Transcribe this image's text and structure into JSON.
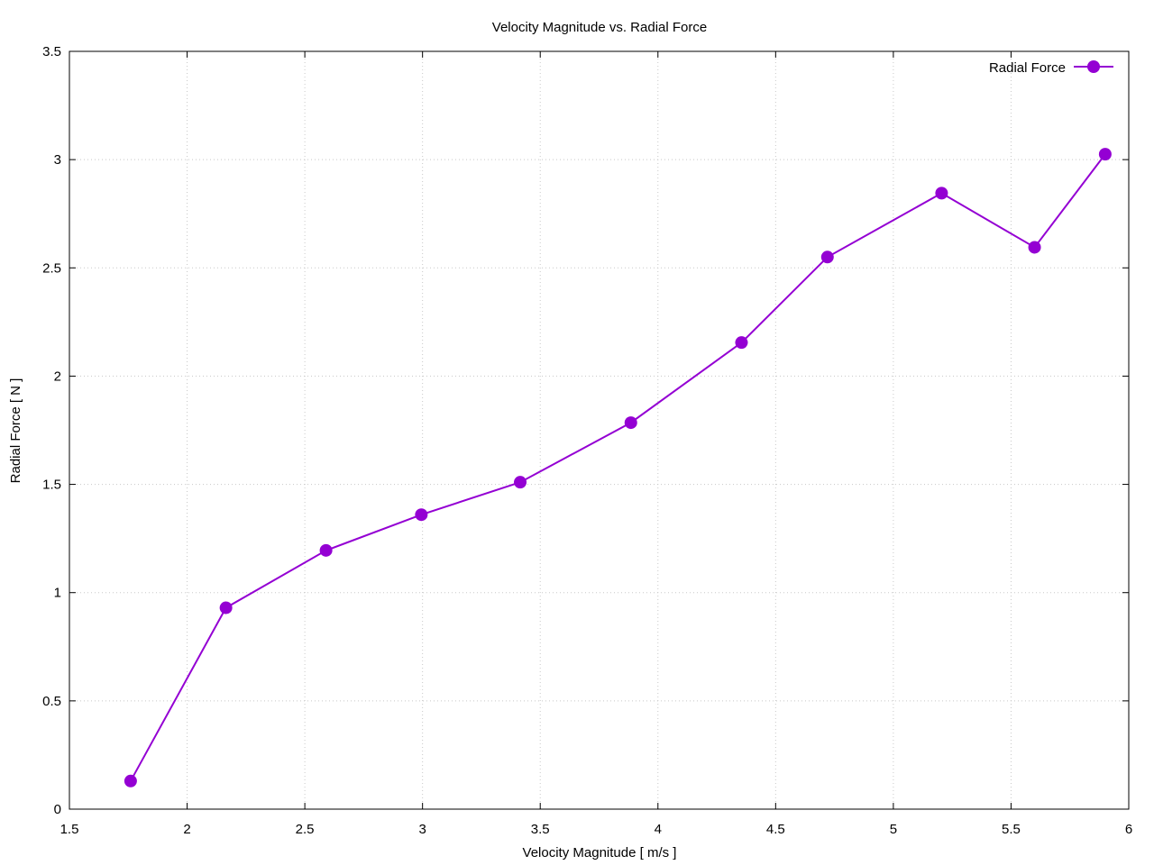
{
  "chart_data": {
    "type": "line",
    "title": "Velocity Magnitude vs. Radial Force",
    "xlabel": "Velocity Magnitude [ m/s ]",
    "ylabel": "Radial Force [ N ]",
    "xlim": [
      1.5,
      6
    ],
    "ylim": [
      0,
      3.5
    ],
    "grid": true,
    "legend_position": "top-right",
    "x_ticks": [
      {
        "value": 1.5,
        "label": "1.5"
      },
      {
        "value": 2,
        "label": "2"
      },
      {
        "value": 2.5,
        "label": "2.5"
      },
      {
        "value": 3,
        "label": "3"
      },
      {
        "value": 3.5,
        "label": "3.5"
      },
      {
        "value": 4,
        "label": "4"
      },
      {
        "value": 4.5,
        "label": "4.5"
      },
      {
        "value": 5,
        "label": "5"
      },
      {
        "value": 5.5,
        "label": "5.5"
      },
      {
        "value": 6,
        "label": "6"
      }
    ],
    "y_ticks": [
      {
        "value": 0,
        "label": "0"
      },
      {
        "value": 0.5,
        "label": "0.5"
      },
      {
        "value": 1,
        "label": "1"
      },
      {
        "value": 1.5,
        "label": "1.5"
      },
      {
        "value": 2,
        "label": "2"
      },
      {
        "value": 2.5,
        "label": "2.5"
      },
      {
        "value": 3,
        "label": "3"
      },
      {
        "value": 3.5,
        "label": "3.5"
      }
    ],
    "series": [
      {
        "name": "Radial Force",
        "color": "#9400d3",
        "x": [
          1.76,
          2.165,
          2.59,
          2.995,
          3.415,
          3.885,
          4.355,
          4.72,
          5.205,
          5.6,
          5.9
        ],
        "y": [
          0.13,
          0.93,
          1.195,
          1.36,
          1.51,
          1.785,
          2.155,
          2.55,
          2.845,
          2.595,
          3.025
        ]
      }
    ]
  }
}
